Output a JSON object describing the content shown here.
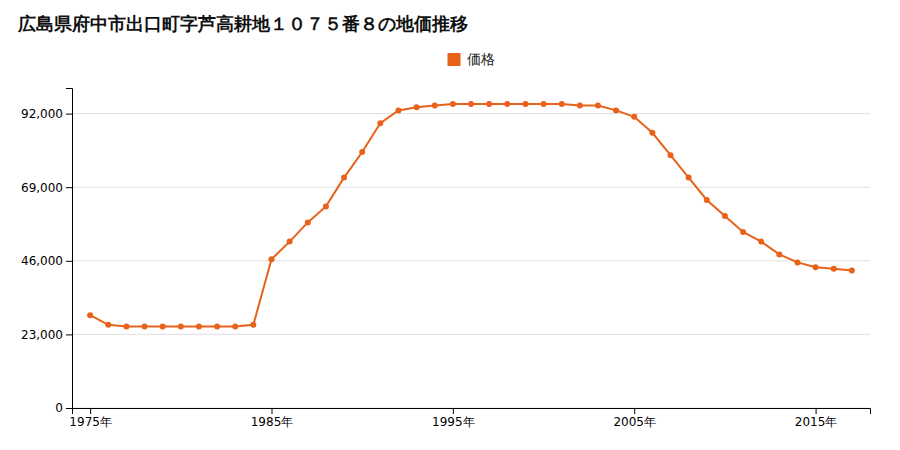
{
  "chart_data": {
    "type": "line",
    "title": "広島県府中市出口町字芦高耕地１０７５番８の地価推移",
    "x": [
      1975,
      1976,
      1977,
      1978,
      1979,
      1980,
      1981,
      1982,
      1983,
      1984,
      1985,
      1986,
      1987,
      1988,
      1989,
      1990,
      1991,
      1992,
      1993,
      1994,
      1995,
      1996,
      1997,
      1998,
      1999,
      2000,
      2001,
      2002,
      2003,
      2004,
      2005,
      2006,
      2007,
      2008,
      2009,
      2010,
      2011,
      2012,
      2013,
      2014,
      2015,
      2016,
      2017
    ],
    "series": [
      {
        "name": "価格",
        "color": "#E8621A",
        "marker": "circle",
        "line_style": "solid",
        "values": [
          29000,
          26000,
          25500,
          25500,
          25500,
          25500,
          25500,
          25500,
          25500,
          26000,
          46500,
          52000,
          58000,
          63000,
          72000,
          80000,
          89000,
          93000,
          94000,
          94500,
          95000,
          95000,
          95000,
          95000,
          95000,
          95000,
          95000,
          94500,
          94500,
          93000,
          91000,
          86000,
          79000,
          72000,
          65000,
          60000,
          55000,
          52000,
          48000,
          45500,
          44000,
          43500,
          43000
        ]
      }
    ],
    "xlim": [
      1974,
      2018
    ],
    "xticks": [
      {
        "value": 1975,
        "label": "1975年"
      },
      {
        "value": 1985,
        "label": "1985年"
      },
      {
        "value": 1995,
        "label": "1995年"
      },
      {
        "value": 2005,
        "label": "2005年"
      },
      {
        "value": 2015,
        "label": "2015年"
      }
    ],
    "ylim": [
      0,
      100000
    ],
    "yticks": [
      0,
      {
        "value": 23000,
        "label": "23,000"
      },
      {
        "value": 46000,
        "label": "46,000"
      },
      {
        "value": 69000,
        "label": "69,000"
      },
      {
        "value": 92000,
        "label": "92,000"
      }
    ],
    "grid": true,
    "legend": "top"
  }
}
